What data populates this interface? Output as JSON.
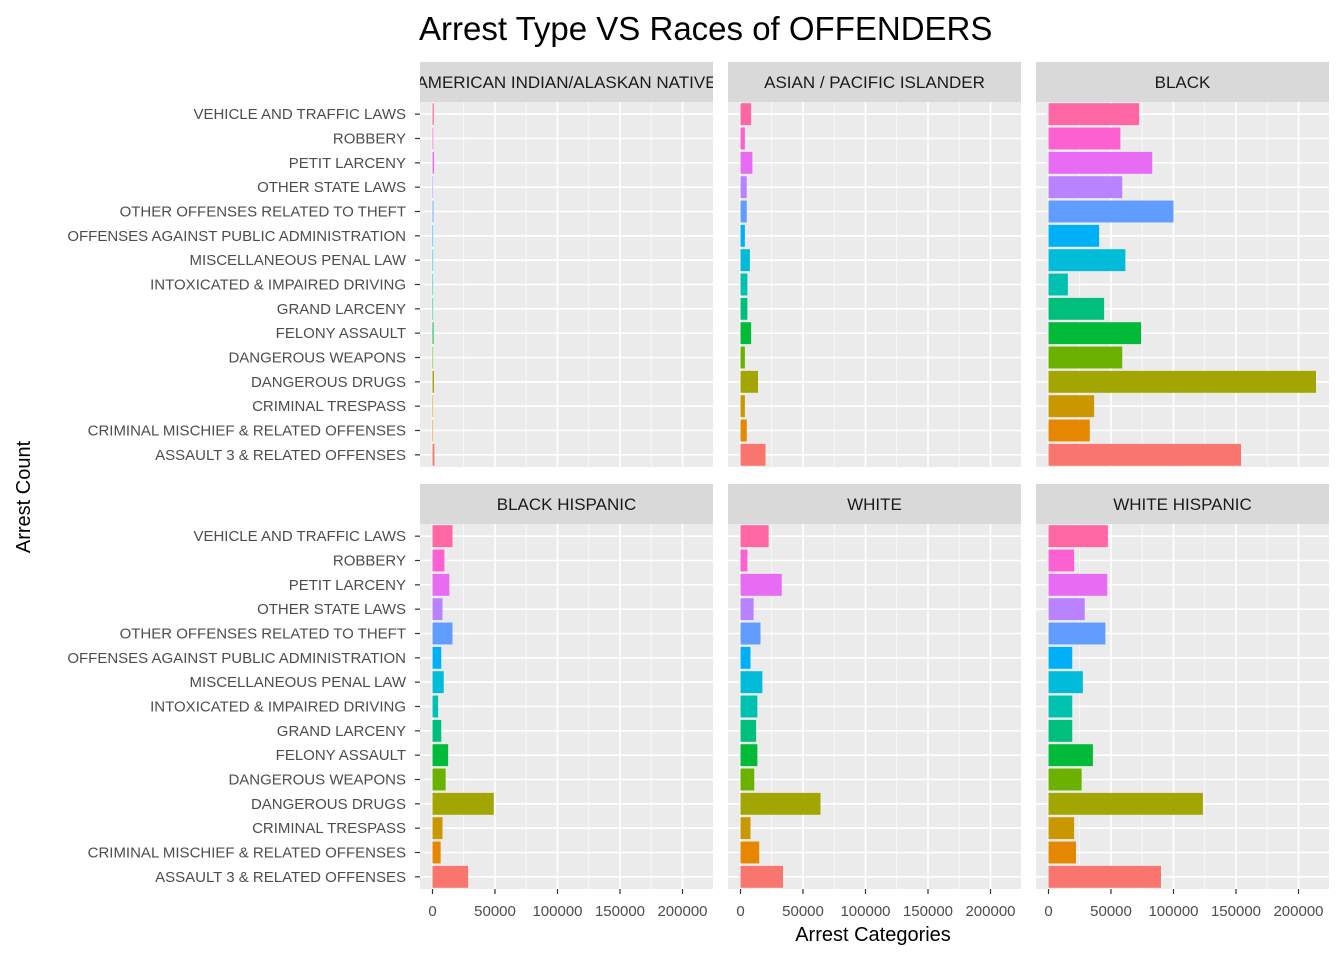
{
  "chart_data": {
    "type": "bar",
    "orientation": "horizontal",
    "title": "Arrest Type VS Races of OFFENDERS",
    "xlabel": "Arrest Categories",
    "ylabel": "Arrest Count",
    "xlim": [
      0,
      220000
    ],
    "x_ticks": [
      0,
      50000,
      100000,
      150000,
      200000
    ],
    "x_tick_labels": [
      "0",
      "50000",
      "100000",
      "150000",
      "200000"
    ],
    "grid": true,
    "legend": "none",
    "categories": [
      "ASSAULT 3 & RELATED OFFENSES",
      "CRIMINAL MISCHIEF & RELATED OFFENSES",
      "CRIMINAL TRESPASS",
      "DANGEROUS DRUGS",
      "DANGEROUS WEAPONS",
      "FELONY ASSAULT",
      "GRAND LARCENY",
      "INTOXICATED & IMPAIRED DRIVING",
      "MISCELLANEOUS PENAL LAW",
      "OFFENSES AGAINST PUBLIC ADMINISTRATION",
      "OTHER OFFENSES RELATED TO THEFT",
      "OTHER STATE LAWS",
      "PETIT LARCENY",
      "ROBBERY",
      "VEHICLE AND TRAFFIC LAWS"
    ],
    "colors": [
      "#F8766D",
      "#E58700",
      "#C99800",
      "#A3A500",
      "#6BB100",
      "#00BA38",
      "#00BF7D",
      "#00C0AF",
      "#00BCD8",
      "#00B0F6",
      "#619CFF",
      "#B983FF",
      "#E76BF3",
      "#FD61D1",
      "#FF67A4"
    ],
    "panel_bg": "#EBEBEB",
    "strip_bg": "#D9D9D9",
    "facets": [
      {
        "strip_text": "AMERICAN INDIAN/ALASKAN NATIVE",
        "values": [
          1500,
          300,
          200,
          1200,
          200,
          800,
          300,
          200,
          500,
          300,
          700,
          400,
          1200,
          600,
          1000
        ]
      },
      {
        "strip_text": "ASIAN / PACIFIC ISLANDER",
        "values": [
          20000,
          5000,
          3500,
          14000,
          3500,
          8500,
          5500,
          5500,
          7500,
          3500,
          5000,
          5000,
          9500,
          3500,
          8500
        ]
      },
      {
        "strip_text": "BLACK",
        "values": [
          154000,
          33000,
          36500,
          214000,
          59000,
          74000,
          44500,
          15500,
          61500,
          40500,
          100000,
          59000,
          83000,
          57500,
          72500
        ]
      },
      {
        "strip_text": "BLACK HISPANIC",
        "values": [
          28500,
          6500,
          8000,
          49000,
          10500,
          12500,
          7000,
          4500,
          9000,
          7000,
          16000,
          8000,
          13500,
          9500,
          16000
        ]
      },
      {
        "strip_text": "WHITE",
        "values": [
          34000,
          15000,
          8000,
          64000,
          11000,
          13500,
          12500,
          13500,
          17500,
          8000,
          16000,
          10500,
          33000,
          5500,
          22500
        ]
      },
      {
        "strip_text": "WHITE HISPANIC",
        "values": [
          90000,
          22000,
          20500,
          123500,
          26500,
          35500,
          19000,
          19000,
          27500,
          19000,
          45500,
          29000,
          47000,
          20500,
          47500
        ]
      }
    ]
  }
}
